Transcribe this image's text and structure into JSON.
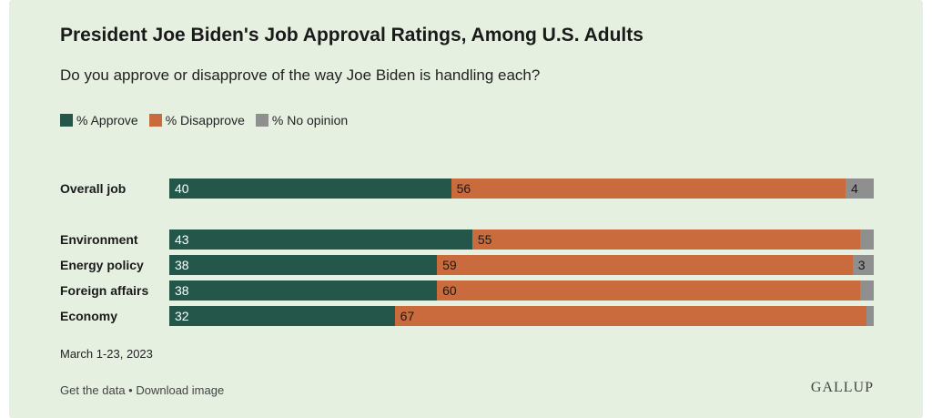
{
  "colors": {
    "approve": "#245749",
    "disapprove": "#c96b3c",
    "no_opinion": "#8f8f8f",
    "background": "#e6f0e1"
  },
  "header": {
    "title": "President Joe Biden's Job Approval Ratings, Among U.S. Adults",
    "subtitle": "Do you approve or disapprove of the way Joe Biden is handling each?"
  },
  "legend": [
    {
      "label": "% Approve",
      "color": "#245749"
    },
    {
      "label": "% Disapprove",
      "color": "#c96b3c"
    },
    {
      "label": "% No opinion",
      "color": "#8f8f8f"
    }
  ],
  "chart_data": {
    "type": "bar",
    "orientation": "horizontal",
    "stacked": true,
    "categories": [
      "Overall job",
      "Environment",
      "Energy policy",
      "Foreign affairs",
      "Economy"
    ],
    "series": [
      {
        "name": "% Approve",
        "values": [
          40,
          43,
          38,
          38,
          32
        ]
      },
      {
        "name": "% Disapprove",
        "values": [
          56,
          55,
          59,
          60,
          67
        ]
      },
      {
        "name": "% No opinion",
        "values": [
          4,
          2,
          3,
          2,
          1
        ]
      }
    ],
    "data_labels": [
      [
        "40",
        "56",
        "4"
      ],
      [
        "43",
        "55",
        ""
      ],
      [
        "38",
        "59",
        "3"
      ],
      [
        "38",
        "60",
        ""
      ],
      [
        "32",
        "67",
        ""
      ]
    ],
    "xlim": [
      0,
      100
    ],
    "legend_position": "top-left",
    "grid": false
  },
  "footer": {
    "dates": "March 1-23, 2023",
    "get_data": "Get the data",
    "separator": " • ",
    "download": "Download image",
    "logo": "GALLUP"
  }
}
